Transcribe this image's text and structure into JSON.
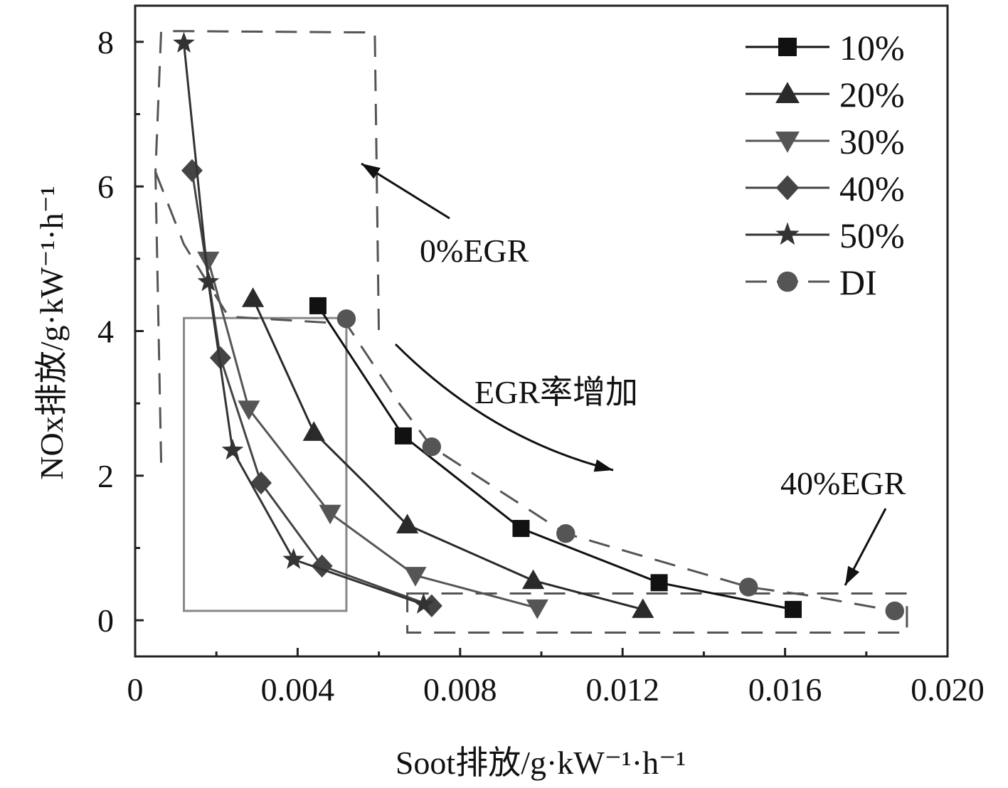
{
  "chart_data": {
    "type": "line",
    "title": "",
    "xlabel": "Soot排放/g·kW⁻¹·h⁻¹",
    "ylabel": "NOx排放/g·kW⁻¹·h⁻¹",
    "xlim": [
      0,
      0.02
    ],
    "ylim": [
      -0.5,
      8.5
    ],
    "x_ticks": [
      0,
      0.004,
      0.008,
      0.012,
      0.016,
      0.02
    ],
    "x_tick_labels": [
      "0",
      "0.004",
      "0.008",
      "0.012",
      "0.016",
      "0.020"
    ],
    "y_ticks": [
      0,
      2,
      4,
      6,
      8
    ],
    "y_tick_labels": [
      "0",
      "2",
      "4",
      "6",
      "8"
    ],
    "legend_position": "top-right",
    "series": [
      {
        "name": "10%",
        "marker": "square",
        "color": "#111111",
        "dashed": false,
        "x": [
          0.0045,
          0.0066,
          0.0095,
          0.0129,
          0.0162
        ],
        "y": [
          4.35,
          2.55,
          1.27,
          0.52,
          0.15
        ]
      },
      {
        "name": "20%",
        "marker": "triangle-up",
        "color": "#2a2a2a",
        "dashed": false,
        "x": [
          0.0029,
          0.0044,
          0.0067,
          0.0098,
          0.0125
        ],
        "y": [
          4.45,
          2.6,
          1.32,
          0.55,
          0.15
        ]
      },
      {
        "name": "30%",
        "marker": "triangle-down",
        "color": "#555555",
        "dashed": false,
        "x": [
          0.0018,
          0.0028,
          0.0048,
          0.0069,
          0.0099
        ],
        "y": [
          4.98,
          2.92,
          1.48,
          0.62,
          0.17
        ]
      },
      {
        "name": "40%",
        "marker": "diamond",
        "color": "#444444",
        "dashed": false,
        "x": [
          0.0014,
          0.0021,
          0.0031,
          0.0046,
          0.0073
        ],
        "y": [
          6.22,
          3.63,
          1.9,
          0.75,
          0.2
        ]
      },
      {
        "name": "50%",
        "marker": "star",
        "color": "#333333",
        "dashed": false,
        "x": [
          0.0012,
          0.0018,
          0.0024,
          0.0039,
          0.0071
        ],
        "y": [
          7.98,
          4.68,
          2.35,
          0.84,
          0.22
        ]
      },
      {
        "name": "DI",
        "marker": "circle",
        "color": "#555555",
        "dashed": true,
        "x": [
          0.0052,
          0.0073,
          0.0106,
          0.0151,
          0.0187
        ],
        "y": [
          4.17,
          2.4,
          1.2,
          0.46,
          0.13
        ]
      }
    ],
    "di_dashed_curve": {
      "x": [
        0.0005,
        0.0012,
        0.0023,
        0.0052,
        0.0065,
        0.0073,
        0.0106,
        0.0151,
        0.0165,
        0.0187
      ],
      "y": [
        6.2,
        5.2,
        4.2,
        4.1,
        3.0,
        2.4,
        1.2,
        0.46,
        0.35,
        0.13
      ]
    },
    "annotations": [
      {
        "text": "0%EGR",
        "x": 0.0071,
        "y": 4.95
      },
      {
        "text": "EGR率增加",
        "x": 0.0127,
        "y": 3.1
      },
      {
        "text": "40%EGR",
        "x": 0.0173,
        "y": 1.75
      }
    ],
    "regions": {
      "egr0_box": {
        "x": [
          0.0005,
          0.0062
        ],
        "y": [
          3.95,
          8.15
        ]
      },
      "egr40_box": {
        "x": [
          0.0067,
          0.019
        ],
        "y": [
          -0.17,
          0.37
        ]
      },
      "highlight_box": {
        "x": [
          0.0012,
          0.0052
        ],
        "y": [
          0.13,
          4.18
        ]
      }
    }
  }
}
